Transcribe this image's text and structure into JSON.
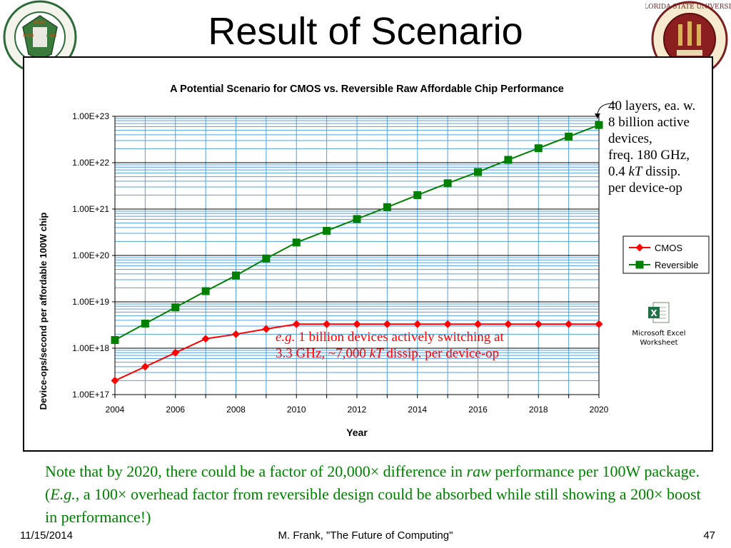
{
  "slide": {
    "title": "Result of Scenario",
    "left_logo_text": "FLORIDA AGRICULTURAL MECHANICAL UNIVERSITY",
    "left_logo_labels": [
      "HEAD",
      "HEART",
      "HAND"
    ],
    "right_logo_text": "FLORIDA STATE UNIVERSITY",
    "right_logo_labels": [
      "VIRES",
      "ARTES",
      "MORES"
    ]
  },
  "chart_data": {
    "type": "line",
    "title": "A Potential Scenario for CMOS vs. Reversible Raw Affordable Chip Performance",
    "xlabel": "Year",
    "ylabel": "Device-ops/second per affordable 100W chip",
    "y_scale": "log",
    "ylim": [
      1e+17,
      1e+23
    ],
    "xlim": [
      2004,
      2020
    ],
    "y_tick_labels": [
      "1.00E+17",
      "1.00E+18",
      "1.00E+19",
      "1.00E+20",
      "1.00E+21",
      "1.00E+22",
      "1.00E+23"
    ],
    "y_tick_values": [
      1e+17,
      1e+18,
      1e+19,
      1e+20,
      1e+21,
      1e+22,
      1e+23
    ],
    "x_tick_labels": [
      "2004",
      "2006",
      "2008",
      "2010",
      "2012",
      "2014",
      "2016",
      "2018",
      "2020"
    ],
    "x_tick_values": [
      2004,
      2006,
      2008,
      2010,
      2012,
      2014,
      2016,
      2018,
      2020
    ],
    "grid": true,
    "legend_position": "right",
    "x": [
      2004,
      2005,
      2006,
      2007,
      2008,
      2009,
      2010,
      2011,
      2012,
      2013,
      2014,
      2015,
      2016,
      2017,
      2018,
      2019,
      2020
    ],
    "series": [
      {
        "name": "CMOS",
        "color": "#ff0000",
        "marker": "diamond",
        "values": [
          2e+17,
          4e+17,
          8e+17,
          1.6e+18,
          2e+18,
          2.6e+18,
          3.3e+18,
          3.3e+18,
          3.3e+18,
          3.3e+18,
          3.3e+18,
          3.3e+18,
          3.3e+18,
          3.3e+18,
          3.3e+18,
          3.3e+18,
          3.3e+18
        ]
      },
      {
        "name": "Reversible",
        "color": "#008000",
        "marker": "square",
        "values": [
          1.5e+18,
          3.4e+18,
          7.6e+18,
          1.7e+19,
          3.7e+19,
          8.6e+19,
          1.9e+20,
          3.4e+20,
          6.1e+20,
          1.1e+21,
          2e+21,
          3.6e+21,
          6.3e+21,
          1.15e+22,
          2.05e+22,
          3.65e+22,
          6.5e+22
        ]
      }
    ]
  },
  "annotations": {
    "reversible_lines": [
      "40 layers, ea. w.",
      "8 billion active",
      "devices,",
      "freq. 180 GHz,"
    ],
    "reversible_kt_line": {
      "prefix": "0.4 ",
      "italic": "kT",
      "suffix": " dissip."
    },
    "reversible_last_line": "per device-op",
    "cmos_eg": "e.g.",
    "cmos_line1": " 1 billion devices actively switching at",
    "cmos_line2_prefix": "3.3 GHz, ~7,000 ",
    "cmos_line2_italic": "kT",
    "cmos_line2_suffix": " dissip. per device-op"
  },
  "embedded_object": {
    "line1": "Microsoft Excel",
    "line2": "Worksheet"
  },
  "note": {
    "part1": "Note that by 2020, there could be a factor of 20,000× difference in ",
    "italic1": "raw",
    "part2": " performance per 100W package.  (",
    "italic2": "E.g.",
    "part3": ", a 100× overhead factor from reversible design could be absorbed while still showing a 200× boost in performance!)"
  },
  "footer": {
    "date": "11/15/2014",
    "center": "M. Frank, \"The Future of Computing\"",
    "page": "47"
  }
}
